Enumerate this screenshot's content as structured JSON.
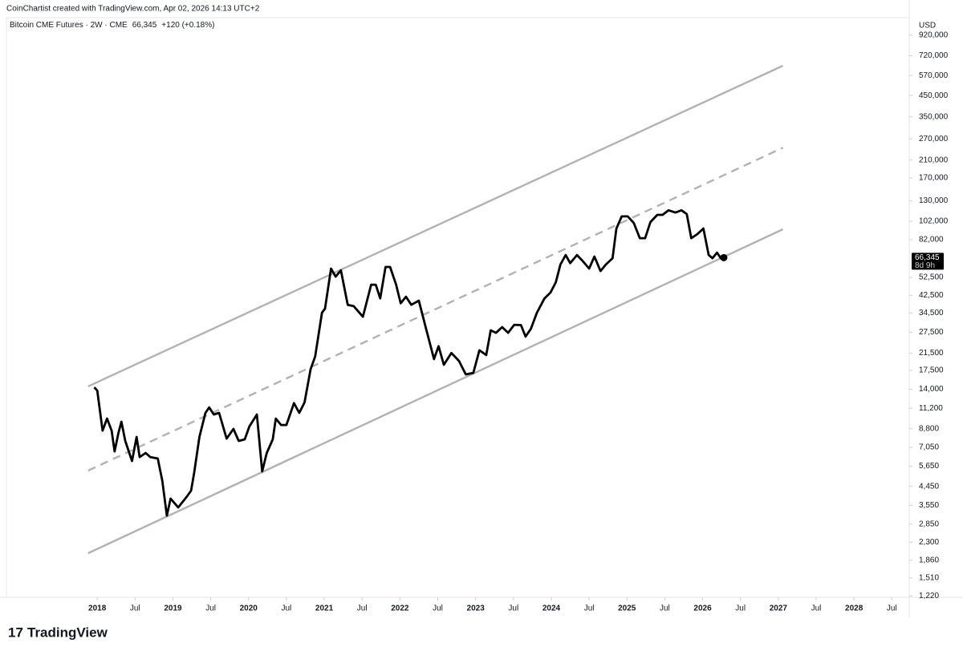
{
  "header": {
    "credit": "CoinChartist created with TradingView.com, Apr 02, 2026 14:13 UTC+2",
    "symbol": "Bitcoin CME Futures · 2W · CME",
    "change": "+120 (+0.18%)",
    "brand": "TradingView"
  },
  "chart_data": {
    "type": "line",
    "log_scale": true,
    "axis_unit": "USD",
    "color": "#000000",
    "x": [
      2017.96,
      2018.0,
      2018.07,
      2018.13,
      2018.19,
      2018.23,
      2018.28,
      2018.32,
      2018.37,
      2018.46,
      2018.52,
      2018.56,
      2018.64,
      2018.7,
      2018.8,
      2018.86,
      2018.92,
      2018.97,
      2019.07,
      2019.18,
      2019.24,
      2019.28,
      2019.35,
      2019.43,
      2019.48,
      2019.54,
      2019.61,
      2019.71,
      2019.8,
      2019.87,
      2019.95,
      2020.01,
      2020.11,
      2020.18,
      2020.24,
      2020.32,
      2020.36,
      2020.43,
      2020.5,
      2020.6,
      2020.67,
      2020.74,
      2020.82,
      2020.88,
      2020.97,
      2021.01,
      2021.09,
      2021.15,
      2021.22,
      2021.31,
      2021.39,
      2021.51,
      2021.62,
      2021.68,
      2021.74,
      2021.81,
      2021.87,
      2021.95,
      2022.01,
      2022.08,
      2022.15,
      2022.25,
      2022.34,
      2022.45,
      2022.51,
      2022.58,
      2022.68,
      2022.78,
      2022.87,
      2022.97,
      2023.05,
      2023.14,
      2023.2,
      2023.27,
      2023.35,
      2023.43,
      2023.51,
      2023.6,
      2023.66,
      2023.73,
      2023.81,
      2023.91,
      2023.99,
      2024.06,
      2024.12,
      2024.19,
      2024.25,
      2024.34,
      2024.41,
      2024.5,
      2024.57,
      2024.65,
      2024.72,
      2024.81,
      2024.86,
      2024.93,
      2025.01,
      2025.09,
      2025.17,
      2025.24,
      2025.31,
      2025.4,
      2025.47,
      2025.55,
      2025.64,
      2025.72,
      2025.79,
      2025.85,
      2025.93,
      2026.01,
      2026.08,
      2026.13,
      2026.19,
      2026.24,
      2026.28
    ],
    "values": [
      14340,
      13800,
      8600,
      9910,
      8600,
      6720,
      8360,
      9550,
      7610,
      6000,
      7980,
      6290,
      6600,
      6290,
      6180,
      4740,
      3150,
      3850,
      3470,
      3920,
      4230,
      5210,
      7980,
      10600,
      11300,
      10400,
      10600,
      7820,
      8770,
      7610,
      7750,
      9020,
      10400,
      5310,
      6600,
      7750,
      9910,
      9190,
      9190,
      11900,
      10600,
      12000,
      17800,
      20600,
      34600,
      36300,
      58300,
      53000,
      57100,
      38000,
      37400,
      33000,
      48200,
      48200,
      41000,
      59400,
      59400,
      48200,
      38700,
      41800,
      38000,
      39900,
      29200,
      20000,
      23300,
      18700,
      21500,
      19600,
      16700,
      17000,
      22200,
      21000,
      28100,
      27300,
      29200,
      27300,
      30000,
      29900,
      26100,
      28600,
      34600,
      41000,
      43900,
      49600,
      61100,
      68400,
      62200,
      68400,
      64100,
      58300,
      67200,
      56600,
      61100,
      65900,
      93600,
      108000,
      108000,
      100000,
      83500,
      83500,
      101000,
      110000,
      110000,
      116000,
      113000,
      116000,
      111000,
      83500,
      87600,
      93600,
      68400,
      65900,
      70400,
      65900,
      66345
    ],
    "last_value_label": "66,345",
    "countdown": "8d 9h",
    "channels": [
      {
        "x": [
          2017.88,
          2027.06
        ],
        "values": [
          14500,
          640000
        ],
        "style": "solid",
        "color": "#b2b2b2"
      },
      {
        "x": [
          2017.88,
          2027.06
        ],
        "values": [
          5360,
          243000
        ],
        "style": "dashed",
        "color": "#b2b2b2"
      },
      {
        "x": [
          2017.88,
          2027.06
        ],
        "values": [
          2020,
          92700
        ],
        "style": "solid",
        "color": "#b2b2b2"
      }
    ],
    "xlim": [
      2016.8,
      2028.73
    ],
    "xticks": [
      2018,
      {
        "value": 2018.5,
        "label": "Jul"
      },
      2019,
      {
        "value": 2019.5,
        "label": "Jul"
      },
      2020,
      {
        "value": 2020.5,
        "label": "Jul"
      },
      2021,
      {
        "value": 2021.5,
        "label": "Jul"
      },
      2022,
      {
        "value": 2022.5,
        "label": "Jul"
      },
      2023,
      {
        "value": 2023.5,
        "label": "Jul"
      },
      2024,
      {
        "value": 2024.5,
        "label": "Jul"
      },
      2025,
      {
        "value": 2025.5,
        "label": "Jul"
      },
      2026,
      {
        "value": 2026.5,
        "label": "Jul"
      },
      2027,
      {
        "value": 2027.5,
        "label": "Jul"
      },
      2028,
      {
        "value": 2028.5,
        "label": "Jul"
      }
    ],
    "ylim": [
      1200,
      1130000
    ],
    "yticks": [
      {
        "value": 920000,
        "label": "920,000"
      },
      {
        "value": 720000,
        "label": "720,000"
      },
      {
        "value": 570000,
        "label": "570,000"
      },
      {
        "value": 450000,
        "label": "450,000"
      },
      {
        "value": 350000,
        "label": "350,000"
      },
      {
        "value": 270000,
        "label": "270,000"
      },
      {
        "value": 210000,
        "label": "210,000"
      },
      {
        "value": 170000,
        "label": "170,000"
      },
      {
        "value": 130000,
        "label": "130,000"
      },
      {
        "value": 102000,
        "label": "102,000"
      },
      {
        "value": 82000,
        "label": "82,000"
      },
      {
        "value": 52500,
        "label": "52,500"
      },
      {
        "value": 42500,
        "label": "42,500"
      },
      {
        "value": 34500,
        "label": "34,500"
      },
      {
        "value": 27500,
        "label": "27,500"
      },
      {
        "value": 21500,
        "label": "21,500"
      },
      {
        "value": 17500,
        "label": "17,500"
      },
      {
        "value": 14000,
        "label": "14,000"
      },
      {
        "value": 11200,
        "label": "11,200"
      },
      {
        "value": 8800,
        "label": "8,800"
      },
      {
        "value": 7050,
        "label": "7,050"
      },
      {
        "value": 5650,
        "label": "5,650"
      },
      {
        "value": 4450,
        "label": "4,450"
      },
      {
        "value": 3550,
        "label": "3,550"
      },
      {
        "value": 2850,
        "label": "2,850"
      },
      {
        "value": 2300,
        "label": "2,300"
      },
      {
        "value": 1860,
        "label": "1,860"
      },
      {
        "value": 1510,
        "label": "1,510"
      },
      {
        "value": 1220,
        "label": "1,220"
      }
    ]
  }
}
